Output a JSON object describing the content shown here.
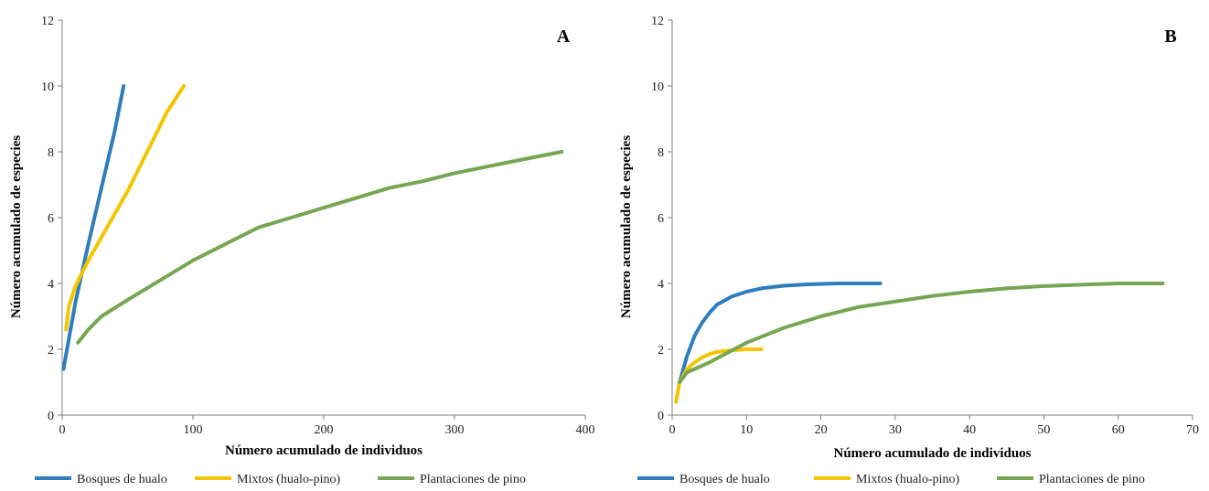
{
  "chart_data": [
    {
      "type": "line",
      "panel_label": "A",
      "xlabel": "Número acumulado de individuos",
      "ylabel": "Número acumulado de especies",
      "xlim": [
        0,
        400
      ],
      "ylim": [
        0,
        12
      ],
      "x_ticks": [
        0,
        100,
        200,
        300,
        400
      ],
      "y_ticks": [
        0,
        2,
        4,
        6,
        8,
        10,
        12
      ],
      "grid": false,
      "legend_position": "bottom",
      "series": [
        {
          "name": "Bosques de hualo",
          "color": "#2e7dbd",
          "points": [
            [
              1,
              1.4
            ],
            [
              10,
              3.4
            ],
            [
              20,
              5.2
            ],
            [
              30,
              6.9
            ],
            [
              40,
              8.6
            ],
            [
              47,
              10.0
            ]
          ]
        },
        {
          "name": "Mixtos (hualo-pino)",
          "color": "#f5c400",
          "points": [
            [
              3,
              2.6
            ],
            [
              5,
              3.3
            ],
            [
              10,
              3.9
            ],
            [
              20,
              4.7
            ],
            [
              30,
              5.4
            ],
            [
              40,
              6.1
            ],
            [
              50,
              6.8
            ],
            [
              60,
              7.6
            ],
            [
              70,
              8.4
            ],
            [
              80,
              9.2
            ],
            [
              93,
              10.0
            ]
          ]
        },
        {
          "name": "Plantaciones de pino",
          "color": "#77a653",
          "points": [
            [
              12,
              2.2
            ],
            [
              20,
              2.6
            ],
            [
              30,
              3.0
            ],
            [
              50,
              3.5
            ],
            [
              75,
              4.1
            ],
            [
              100,
              4.7
            ],
            [
              125,
              5.2
            ],
            [
              150,
              5.7
            ],
            [
              175,
              6.0
            ],
            [
              200,
              6.3
            ],
            [
              225,
              6.6
            ],
            [
              250,
              6.9
            ],
            [
              275,
              7.1
            ],
            [
              300,
              7.35
            ],
            [
              325,
              7.55
            ],
            [
              350,
              7.75
            ],
            [
              382,
              8.0
            ]
          ]
        }
      ]
    },
    {
      "type": "line",
      "panel_label": "B",
      "xlabel": "Número acumulado de individuos",
      "ylabel": "Número acumulado de especies",
      "xlim": [
        0,
        70
      ],
      "ylim": [
        0,
        12
      ],
      "x_ticks": [
        0,
        10,
        20,
        30,
        40,
        50,
        60,
        70
      ],
      "y_ticks": [
        0,
        2,
        4,
        6,
        8,
        10,
        12
      ],
      "grid": false,
      "legend_position": "bottom",
      "series": [
        {
          "name": "Bosques de hualo",
          "color": "#2e7dbd",
          "points": [
            [
              1,
              1.0
            ],
            [
              2,
              1.8
            ],
            [
              3,
              2.4
            ],
            [
              4,
              2.8
            ],
            [
              5,
              3.1
            ],
            [
              6,
              3.35
            ],
            [
              8,
              3.6
            ],
            [
              10,
              3.75
            ],
            [
              12,
              3.85
            ],
            [
              15,
              3.93
            ],
            [
              18,
              3.97
            ],
            [
              22,
              4.0
            ],
            [
              28,
              4.0
            ]
          ]
        },
        {
          "name": "Mixtos (hualo-pino)",
          "color": "#f5c400",
          "points": [
            [
              0.5,
              0.4
            ],
            [
              1,
              1.0
            ],
            [
              2,
              1.4
            ],
            [
              3,
              1.6
            ],
            [
              4,
              1.75
            ],
            [
              5,
              1.85
            ],
            [
              6,
              1.92
            ],
            [
              8,
              1.97
            ],
            [
              10,
              2.0
            ],
            [
              12,
              2.0
            ]
          ]
        },
        {
          "name": "Plantaciones de pino",
          "color": "#77a653",
          "points": [
            [
              1,
              1.0
            ],
            [
              2,
              1.3
            ],
            [
              5,
              1.6
            ],
            [
              10,
              2.2
            ],
            [
              15,
              2.65
            ],
            [
              20,
              3.0
            ],
            [
              25,
              3.28
            ],
            [
              30,
              3.45
            ],
            [
              35,
              3.62
            ],
            [
              40,
              3.75
            ],
            [
              45,
              3.85
            ],
            [
              50,
              3.92
            ],
            [
              55,
              3.96
            ],
            [
              60,
              4.0
            ],
            [
              66,
              4.0
            ]
          ]
        }
      ]
    }
  ]
}
